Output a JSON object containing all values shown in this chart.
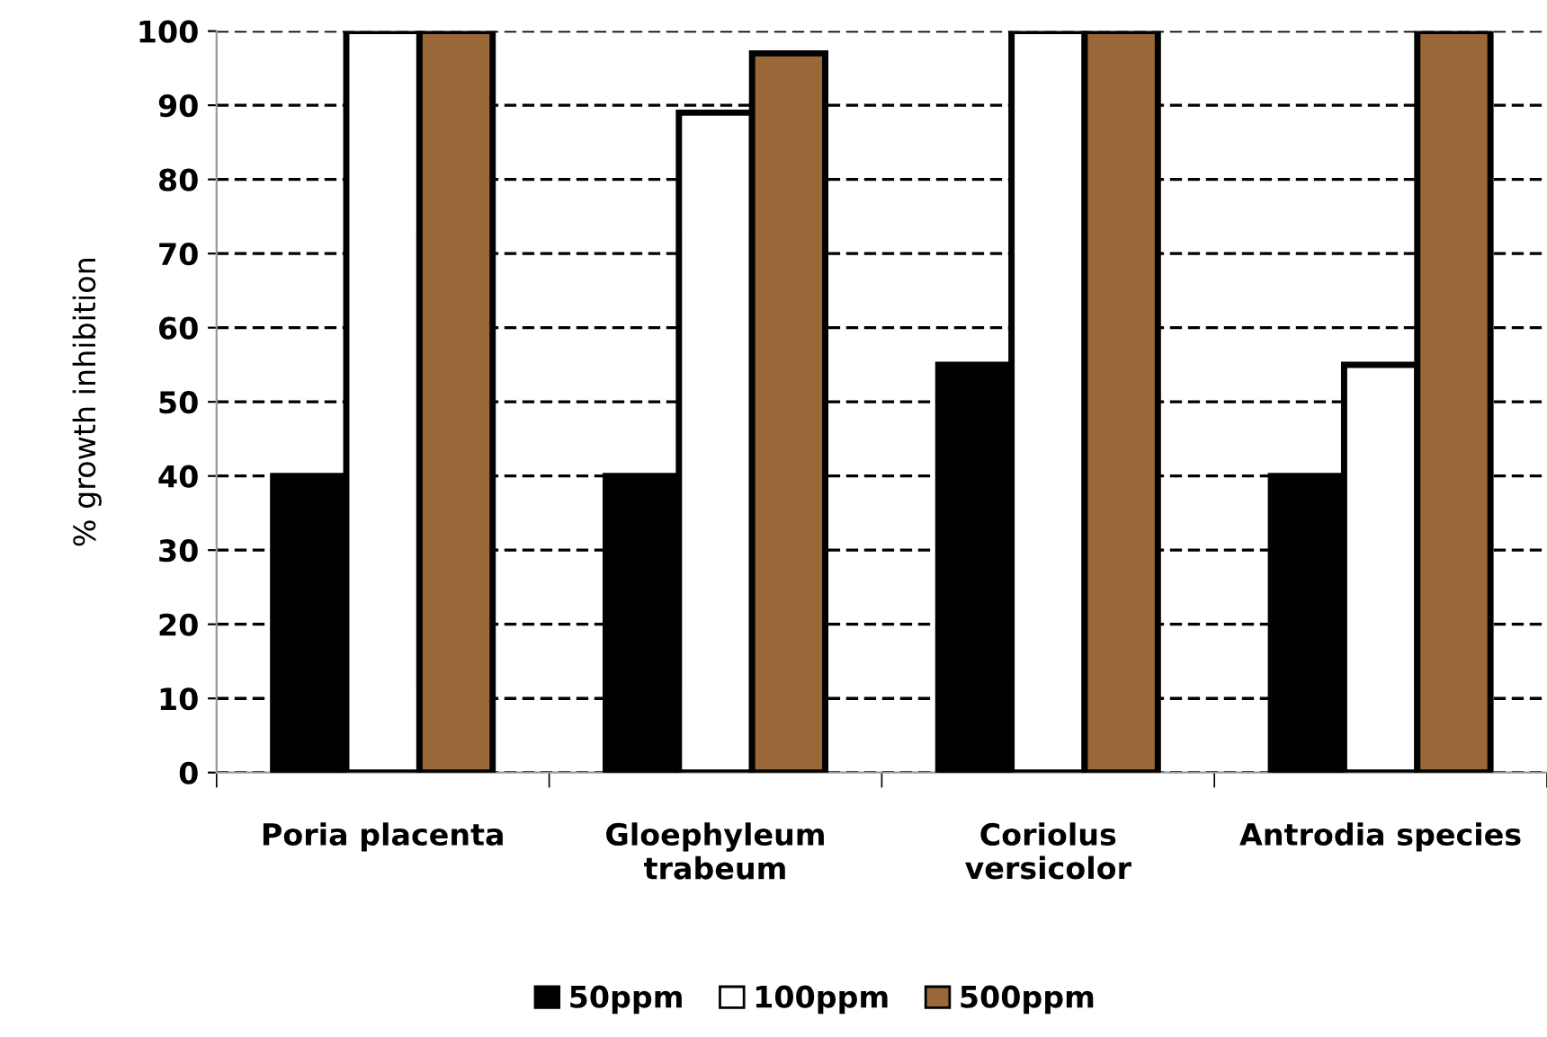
{
  "chart_data": {
    "type": "bar",
    "ylabel": "% growth inhibition",
    "categories": [
      "Poria placenta",
      "Gloephyleum\ntrabeum",
      "Coriolus\nversicolor",
      "Antrodia species"
    ],
    "series": [
      {
        "name": "50ppm",
        "color": "#000000",
        "values": [
          40,
          40,
          55,
          40
        ]
      },
      {
        "name": "100ppm",
        "color": "#ffffff",
        "values": [
          100,
          89,
          100,
          55
        ]
      },
      {
        "name": "500ppm",
        "color": "#9a6838",
        "values": [
          100,
          97,
          100,
          100
        ]
      }
    ],
    "ylim": [
      0,
      100
    ],
    "yticks": [
      0,
      10,
      20,
      30,
      40,
      50,
      60,
      70,
      80,
      90,
      100
    ],
    "grid": "y",
    "legend": "bottom"
  }
}
